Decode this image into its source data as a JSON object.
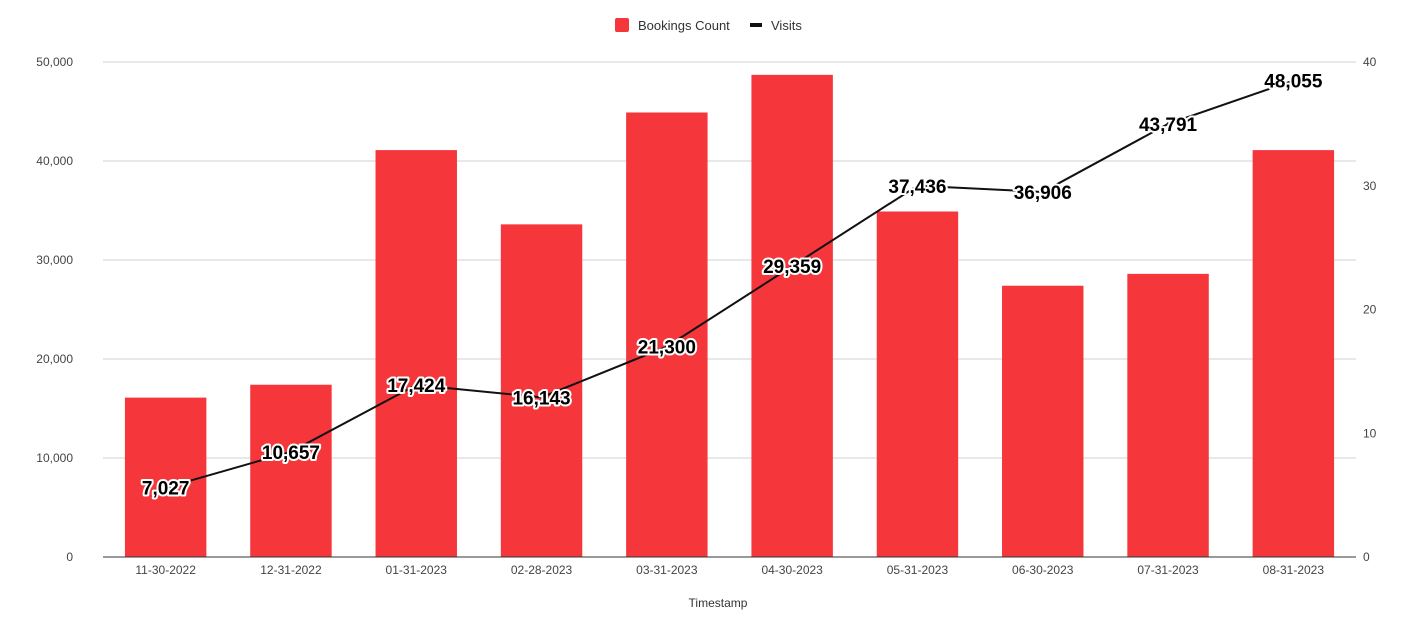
{
  "chart_data": {
    "type": "bar",
    "categories": [
      "11-30-2022",
      "12-31-2022",
      "01-31-2023",
      "02-28-2023",
      "03-31-2023",
      "04-30-2023",
      "05-31-2023",
      "06-30-2023",
      "07-31-2023",
      "08-31-2023"
    ],
    "series": [
      {
        "name": "Bookings Count",
        "type": "bar",
        "axis": "left",
        "color": "#f5373c",
        "values": [
          16100,
          17400,
          41100,
          33600,
          44900,
          48700,
          34900,
          27400,
          28600,
          41100
        ]
      },
      {
        "name": "Visits",
        "type": "line",
        "axis": "right",
        "color": "#111111",
        "values": [
          5.6,
          8.5,
          13.9,
          12.9,
          17.0,
          23.5,
          30.0,
          29.5,
          35.0,
          38.5
        ],
        "data_labels": [
          "7,027",
          "10,657",
          "17,424",
          "16,143",
          "21,300",
          "29,359",
          "37,436",
          "36,906",
          "43,791",
          "48,055"
        ]
      }
    ],
    "xlabel": "Timestamp",
    "ylabel": "",
    "y2label": "",
    "ylim": [
      0,
      50000
    ],
    "y2lim": [
      0,
      40
    ],
    "yticks": [
      "0",
      "10,000",
      "20,000",
      "30,000",
      "40,000",
      "50,000"
    ],
    "y2ticks": [
      "0",
      "10",
      "20",
      "30",
      "40"
    ],
    "grid": true,
    "legend_position": "top-center"
  }
}
